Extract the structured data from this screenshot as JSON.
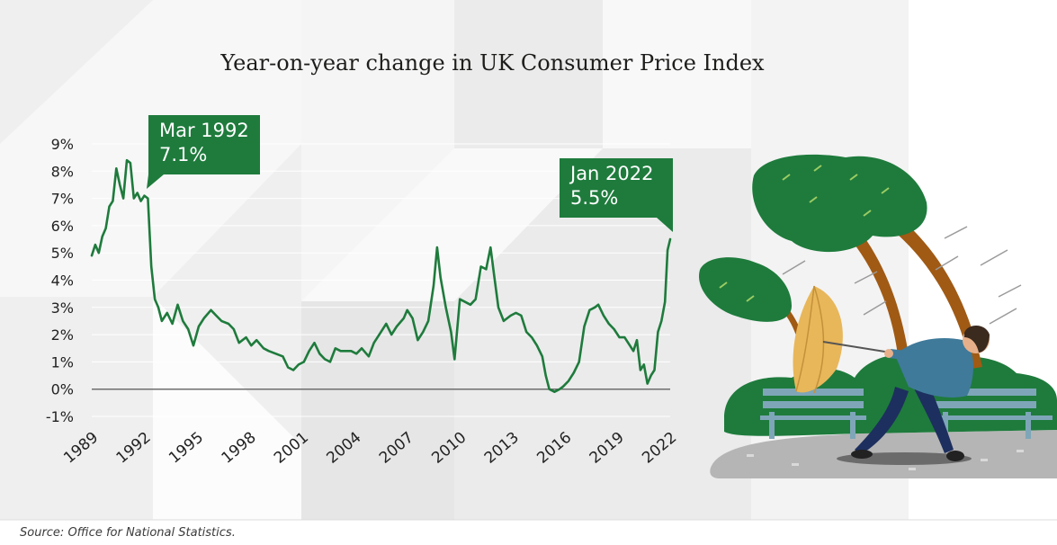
{
  "title": "Year-on-year change in UK Consumer Price Index",
  "source": "Source: Office for National Statistics.",
  "callouts": [
    {
      "date": "Mar 1992",
      "value": "7.1%"
    },
    {
      "date": "Jan 2022",
      "value": "5.5%"
    }
  ],
  "colors": {
    "line": "#1e7b3c",
    "callout": "#1e7b3c",
    "grid": "#ffffff",
    "zero_line": "#6e6e6e"
  },
  "chart_data": {
    "type": "line",
    "title": "Year-on-year change in UK Consumer Price Index",
    "xlabel": "",
    "ylabel": "",
    "xlim": [
      1989,
      2022
    ],
    "ylim": [
      -1,
      9
    ],
    "yticks": [
      "9%",
      "8%",
      "7%",
      "6%",
      "5%",
      "4%",
      "3%",
      "2%",
      "1%",
      "0%",
      "-1%"
    ],
    "xticks": [
      "1989",
      "1992",
      "1995",
      "1998",
      "2001",
      "2004",
      "2007",
      "2010",
      "2013",
      "2016",
      "2019",
      "2022"
    ],
    "grid": true,
    "series": [
      {
        "values": [
          [
            1989.0,
            4.9
          ],
          [
            1989.2,
            5.3
          ],
          [
            1989.4,
            5.0
          ],
          [
            1989.6,
            5.6
          ],
          [
            1989.8,
            5.9
          ],
          [
            1990.0,
            6.7
          ],
          [
            1990.2,
            6.9
          ],
          [
            1990.4,
            8.1
          ],
          [
            1990.6,
            7.5
          ],
          [
            1990.8,
            7.0
          ],
          [
            1991.0,
            8.4
          ],
          [
            1991.2,
            8.3
          ],
          [
            1991.4,
            7.0
          ],
          [
            1991.6,
            7.2
          ],
          [
            1991.8,
            6.9
          ],
          [
            1992.0,
            7.1
          ],
          [
            1992.2,
            7.0
          ],
          [
            1992.4,
            4.5
          ],
          [
            1992.6,
            3.3
          ],
          [
            1992.8,
            3.0
          ],
          [
            1993.0,
            2.5
          ],
          [
            1993.3,
            2.8
          ],
          [
            1993.6,
            2.4
          ],
          [
            1993.9,
            3.1
          ],
          [
            1994.2,
            2.5
          ],
          [
            1994.5,
            2.2
          ],
          [
            1994.8,
            1.6
          ],
          [
            1995.1,
            2.3
          ],
          [
            1995.4,
            2.6
          ],
          [
            1995.8,
            2.9
          ],
          [
            1996.1,
            2.7
          ],
          [
            1996.4,
            2.5
          ],
          [
            1996.8,
            2.4
          ],
          [
            1997.1,
            2.2
          ],
          [
            1997.4,
            1.7
          ],
          [
            1997.8,
            1.9
          ],
          [
            1998.1,
            1.6
          ],
          [
            1998.4,
            1.8
          ],
          [
            1998.8,
            1.5
          ],
          [
            1999.1,
            1.4
          ],
          [
            1999.5,
            1.3
          ],
          [
            1999.9,
            1.2
          ],
          [
            2000.2,
            0.8
          ],
          [
            2000.5,
            0.7
          ],
          [
            2000.8,
            0.9
          ],
          [
            2001.1,
            1.0
          ],
          [
            2001.4,
            1.4
          ],
          [
            2001.7,
            1.7
          ],
          [
            2002.0,
            1.3
          ],
          [
            2002.3,
            1.1
          ],
          [
            2002.6,
            1.0
          ],
          [
            2002.9,
            1.5
          ],
          [
            2003.2,
            1.4
          ],
          [
            2003.5,
            1.4
          ],
          [
            2003.8,
            1.4
          ],
          [
            2004.1,
            1.3
          ],
          [
            2004.4,
            1.5
          ],
          [
            2004.8,
            1.2
          ],
          [
            2005.1,
            1.7
          ],
          [
            2005.4,
            2.0
          ],
          [
            2005.8,
            2.4
          ],
          [
            2006.1,
            2.0
          ],
          [
            2006.4,
            2.3
          ],
          [
            2006.8,
            2.6
          ],
          [
            2007.0,
            2.9
          ],
          [
            2007.3,
            2.6
          ],
          [
            2007.6,
            1.8
          ],
          [
            2007.9,
            2.1
          ],
          [
            2008.2,
            2.5
          ],
          [
            2008.5,
            3.8
          ],
          [
            2008.7,
            5.2
          ],
          [
            2008.9,
            4.1
          ],
          [
            2009.2,
            3.0
          ],
          [
            2009.5,
            2.1
          ],
          [
            2009.7,
            1.1
          ],
          [
            2010.0,
            3.3
          ],
          [
            2010.3,
            3.2
          ],
          [
            2010.6,
            3.1
          ],
          [
            2010.9,
            3.3
          ],
          [
            2011.2,
            4.5
          ],
          [
            2011.5,
            4.4
          ],
          [
            2011.75,
            5.2
          ],
          [
            2011.95,
            4.2
          ],
          [
            2012.2,
            3.0
          ],
          [
            2012.5,
            2.5
          ],
          [
            2012.9,
            2.7
          ],
          [
            2013.2,
            2.8
          ],
          [
            2013.5,
            2.7
          ],
          [
            2013.8,
            2.1
          ],
          [
            2014.1,
            1.9
          ],
          [
            2014.4,
            1.6
          ],
          [
            2014.7,
            1.2
          ],
          [
            2014.9,
            0.5
          ],
          [
            2015.1,
            0.0
          ],
          [
            2015.4,
            -0.1
          ],
          [
            2015.7,
            0.0
          ],
          [
            2015.9,
            0.1
          ],
          [
            2016.2,
            0.3
          ],
          [
            2016.5,
            0.6
          ],
          [
            2016.8,
            1.0
          ],
          [
            2017.1,
            2.3
          ],
          [
            2017.4,
            2.9
          ],
          [
            2017.7,
            3.0
          ],
          [
            2017.9,
            3.1
          ],
          [
            2018.2,
            2.7
          ],
          [
            2018.5,
            2.4
          ],
          [
            2018.8,
            2.2
          ],
          [
            2019.1,
            1.9
          ],
          [
            2019.4,
            1.9
          ],
          [
            2019.7,
            1.6
          ],
          [
            2019.9,
            1.4
          ],
          [
            2020.1,
            1.8
          ],
          [
            2020.3,
            0.7
          ],
          [
            2020.5,
            0.9
          ],
          [
            2020.7,
            0.2
          ],
          [
            2020.9,
            0.5
          ],
          [
            2021.1,
            0.7
          ],
          [
            2021.3,
            2.1
          ],
          [
            2021.5,
            2.5
          ],
          [
            2021.7,
            3.2
          ],
          [
            2021.85,
            5.1
          ],
          [
            2022.0,
            5.5
          ]
        ]
      }
    ]
  },
  "illustration": {
    "name": "man-with-umbrella-in-storm"
  }
}
